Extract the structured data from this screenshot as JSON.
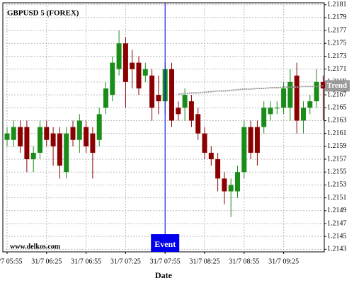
{
  "chart_data": {
    "type": "candlestick",
    "title": "GBPUSD 5 (FOREX)",
    "watermark": "www.delkos.com",
    "x_label": "Date",
    "categories": [
      "31/7 05:55",
      null,
      null,
      null,
      null,
      null,
      "31/7 06:25",
      null,
      null,
      null,
      null,
      null,
      "31/7 06:55",
      null,
      null,
      null,
      null,
      null,
      "31/7 07:25",
      null,
      null,
      null,
      null,
      null,
      "31/7 07:55",
      null,
      null,
      null,
      null,
      null,
      "31/7 08:25",
      null,
      null,
      null,
      null,
      null,
      "31/7 08:55",
      null,
      null,
      null,
      null,
      null,
      "31/7 09:25",
      null,
      null,
      null,
      null,
      null,
      null
    ],
    "open": [
      1.216,
      1.216,
      1.2162,
      1.2162,
      1.2157,
      1.2158,
      1.2162,
      1.2161,
      1.2161,
      1.2155,
      1.2162,
      1.216,
      1.2162,
      1.2161,
      1.216,
      1.2165,
      1.2167,
      1.2171,
      1.2175,
      1.2172,
      1.2172,
      1.217,
      1.217,
      1.2167,
      1.2166,
      1.2171,
      1.2165,
      1.2165,
      1.2166,
      1.2164,
      1.2161,
      1.2158,
      1.2157,
      1.2154,
      1.2152,
      1.2152,
      1.2155,
      1.2162,
      1.2162,
      1.2162,
      1.2164,
      1.2165,
      1.2165,
      1.2165,
      1.217,
      1.2163,
      1.2165,
      1.2166,
      1.2169
    ],
    "high": [
      1.2162,
      1.2163,
      1.2163,
      1.2163,
      1.2159,
      1.2163,
      1.2163,
      1.2162,
      1.2162,
      1.2162,
      1.2163,
      1.2164,
      1.2163,
      1.2162,
      1.2165,
      1.2169,
      1.2173,
      1.2177,
      1.2176,
      1.2174,
      1.2173,
      1.2172,
      1.2171,
      1.217,
      1.2172,
      1.2172,
      1.2166,
      1.2168,
      1.2167,
      1.2165,
      1.2162,
      1.2159,
      1.2158,
      1.2155,
      1.2154,
      1.2156,
      1.2163,
      1.2163,
      1.2163,
      1.2166,
      1.2166,
      1.2166,
      1.2169,
      1.2171,
      1.2172,
      1.2166,
      1.2167,
      1.2171,
      1.217
    ],
    "low": [
      1.2159,
      1.2159,
      1.2158,
      1.2155,
      1.2155,
      1.2157,
      1.2159,
      1.2156,
      1.2154,
      1.2154,
      1.2159,
      1.2158,
      1.2158,
      1.2154,
      1.2159,
      1.2164,
      1.2166,
      1.217,
      1.2165,
      1.2168,
      1.2167,
      1.2169,
      1.2163,
      1.2164,
      1.2164,
      1.2162,
      1.2163,
      1.2163,
      1.2162,
      1.216,
      1.2157,
      1.2156,
      1.2152,
      1.215,
      1.2148,
      1.2151,
      1.2154,
      1.2157,
      1.2156,
      1.2161,
      1.2163,
      1.2164,
      1.2164,
      1.2163,
      1.2161,
      1.2161,
      1.2164,
      1.2165,
      1.2163
    ],
    "close": [
      1.2161,
      1.2162,
      1.2159,
      1.2157,
      1.2158,
      1.2162,
      1.216,
      1.2159,
      1.2156,
      1.2161,
      1.216,
      1.2163,
      1.2159,
      1.2158,
      1.2164,
      1.2168,
      1.2172,
      1.2175,
      1.2169,
      1.2171,
      1.2168,
      1.2171,
      1.2165,
      1.2166,
      1.2171,
      1.2163,
      1.2164,
      1.2167,
      1.2163,
      1.2161,
      1.2158,
      1.2157,
      1.2154,
      1.2152,
      1.2153,
      1.2155,
      1.2162,
      1.2158,
      1.2158,
      1.2165,
      1.2165,
      1.2165,
      1.2168,
      1.2169,
      1.2163,
      1.2165,
      1.2166,
      1.2169,
      1.2168
    ],
    "up_color": "#1a8c1a",
    "down_color": "#8b0000",
    "trend": {
      "name": "Trend",
      "color": "#999999",
      "values": [
        null,
        null,
        null,
        null,
        null,
        null,
        null,
        null,
        null,
        null,
        null,
        null,
        null,
        null,
        null,
        null,
        null,
        null,
        null,
        null,
        null,
        null,
        null,
        null,
        null,
        null,
        1.21671,
        1.21672,
        1.21673,
        1.21673,
        1.21674,
        1.21675,
        1.21676,
        1.21676,
        1.21677,
        1.21678,
        1.21679,
        1.21679,
        1.2168,
        1.2168,
        1.21681,
        1.21681,
        1.21682,
        1.21682,
        1.21682,
        1.21683,
        1.21683,
        1.21683,
        1.21684
      ]
    },
    "event": {
      "label": "Event",
      "x": "31/7 07:55",
      "color": "#0000ee"
    },
    "ylim": [
      1.21426,
      1.21813
    ],
    "yticks": [
      1.2143,
      1.2145,
      1.2147,
      1.2149,
      1.2151,
      1.2153,
      1.2155,
      1.2157,
      1.2159,
      1.2161,
      1.2163,
      1.2165,
      1.2167,
      1.2169,
      1.2171,
      1.2173,
      1.2175,
      1.2177,
      1.2179,
      1.2181
    ],
    "grid": true
  }
}
